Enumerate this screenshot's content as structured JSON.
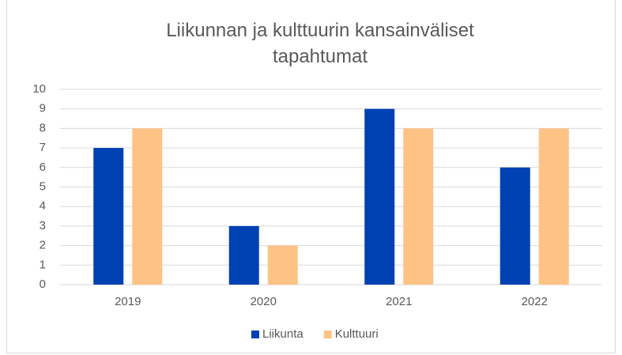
{
  "chart_data": {
    "type": "bar",
    "title": "Liikunnan ja kulttuurin kansainväliset tapahtumat",
    "categories": [
      "2019",
      "2020",
      "2021",
      "2022"
    ],
    "series": [
      {
        "name": "Liikunta",
        "color": "#0041b3",
        "values": [
          7,
          3,
          9,
          6
        ]
      },
      {
        "name": "Kulttuuri",
        "color": "#ffc285",
        "values": [
          8,
          2,
          8,
          8
        ]
      }
    ],
    "ylim": [
      0,
      10
    ],
    "yticks": [
      0,
      1,
      2,
      3,
      4,
      5,
      6,
      7,
      8,
      9,
      10
    ],
    "grid": true,
    "legend": "bottom"
  }
}
